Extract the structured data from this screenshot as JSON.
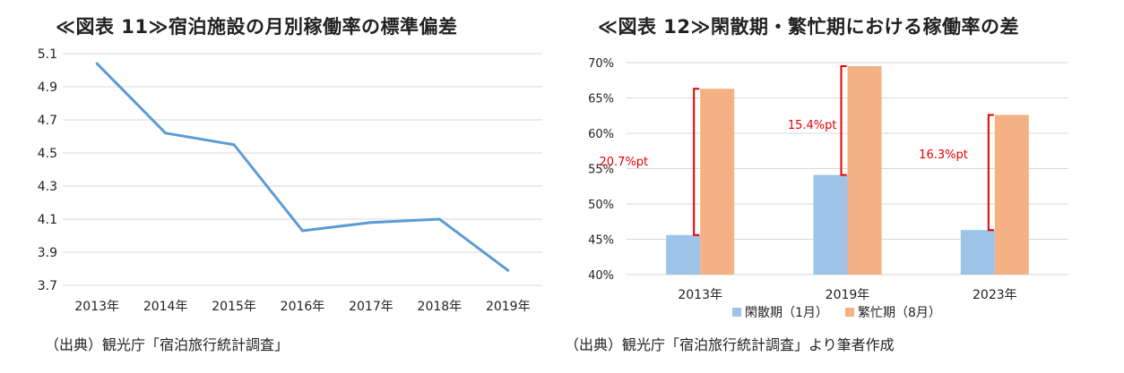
{
  "chart_data": [
    {
      "type": "line",
      "title": "≪図表 11≫宿泊施設の月別稼働率の標準偏差",
      "categories": [
        "2013年",
        "2014年",
        "2015年",
        "2016年",
        "2017年",
        "2018年",
        "2019年"
      ],
      "series": [
        {
          "values": [
            5.04,
            4.62,
            4.55,
            4.03,
            4.08,
            4.1,
            3.79
          ]
        }
      ],
      "ylim": [
        3.7,
        5.1
      ],
      "yticks": [
        3.7,
        3.9,
        4.1,
        4.3,
        4.5,
        4.7,
        4.9,
        5.1
      ],
      "ytick_labels": [
        "3.7",
        "3.9",
        "4.1",
        "4.3",
        "4.5",
        "4.7",
        "4.9",
        "5.1"
      ],
      "grid": true,
      "line_color": "#5b9bd5",
      "source": "（出典）観光庁「宿泊旅行統計調査」"
    },
    {
      "type": "bar",
      "title": "≪図表 12≫閑散期・繁忙期における稼働率の差",
      "categories": [
        "2013年",
        "2019年",
        "2023年"
      ],
      "series": [
        {
          "name": "閑散期（1月）",
          "values": [
            45.6,
            54.1,
            46.3
          ],
          "color": "#9dc3e6"
        },
        {
          "name": "繁忙期（8月）",
          "values": [
            66.3,
            69.5,
            62.6
          ],
          "color": "#f4b183"
        }
      ],
      "annotations": [
        "20.7%pt",
        "15.4%pt",
        "16.3%pt"
      ],
      "annotation_color": "#e60000",
      "ylim": [
        40,
        70
      ],
      "yticks": [
        40,
        45,
        50,
        55,
        60,
        65,
        70
      ],
      "ytick_labels": [
        "40%",
        "45%",
        "50%",
        "55%",
        "60%",
        "65%",
        "70%"
      ],
      "grid": true,
      "legend_position": "bottom",
      "source": "（出典）観光庁「宿泊旅行統計調査」より筆者作成"
    }
  ]
}
